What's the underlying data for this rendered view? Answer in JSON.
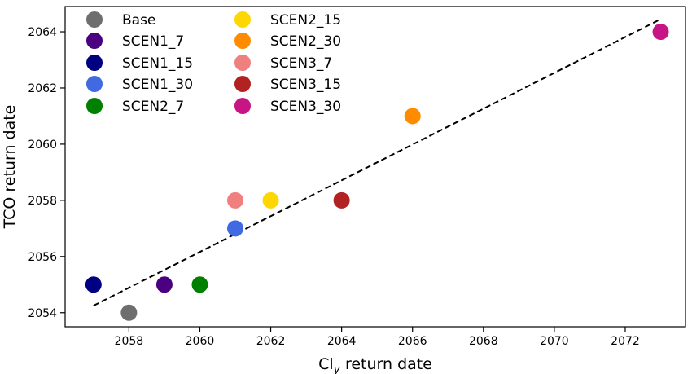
{
  "chart_data": {
    "type": "scatter",
    "xlabel_main": "Cl",
    "xlabel_sub": "y",
    "xlabel_rest": " return date",
    "ylabel": "TCO return date",
    "xlim": [
      2056.2,
      2073.7
    ],
    "ylim": [
      2053.5,
      2064.9
    ],
    "xticks": [
      2058,
      2060,
      2062,
      2064,
      2066,
      2068,
      2070,
      2072
    ],
    "yticks": [
      2054,
      2056,
      2058,
      2060,
      2062,
      2064
    ],
    "grid": false,
    "legend_position": "top-left",
    "series": [
      {
        "name": "Base",
        "color": "#6e6e6e",
        "x": 2058,
        "y": 2054
      },
      {
        "name": "SCEN1_7",
        "color": "#4b0082",
        "x": 2059,
        "y": 2055
      },
      {
        "name": "SCEN1_15",
        "color": "#000080",
        "x": 2057,
        "y": 2055
      },
      {
        "name": "SCEN1_30",
        "color": "#4169e1",
        "x": 2061,
        "y": 2057
      },
      {
        "name": "SCEN2_7",
        "color": "#008000",
        "x": 2060,
        "y": 2055
      },
      {
        "name": "SCEN2_15",
        "color": "#ffd700",
        "x": 2062,
        "y": 2058
      },
      {
        "name": "SCEN2_30",
        "color": "#ff8c00",
        "x": 2066,
        "y": 2061
      },
      {
        "name": "SCEN3_7",
        "color": "#f08080",
        "x": 2061,
        "y": 2058
      },
      {
        "name": "SCEN3_15",
        "color": "#b22222",
        "x": 2064,
        "y": 2058
      },
      {
        "name": "SCEN3_30",
        "color": "#c71585",
        "x": 2073,
        "y": 2064
      }
    ],
    "fit_line": {
      "style": "dashed",
      "color": "#000000",
      "x": [
        2057,
        2073
      ],
      "y": [
        2054.25,
        2064.45
      ]
    }
  }
}
